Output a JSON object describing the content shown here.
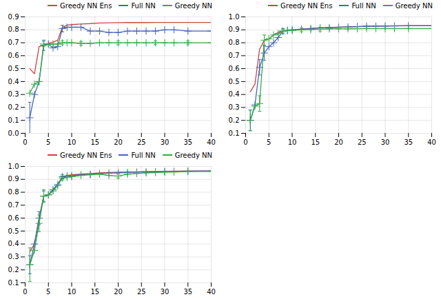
{
  "chart_data": [
    {
      "type": "line",
      "x": [
        1,
        2,
        3,
        4,
        5,
        6,
        7,
        8,
        9,
        10,
        12,
        14,
        16,
        18,
        20,
        22,
        24,
        26,
        28,
        30,
        32,
        35,
        40
      ],
      "series": [
        {
          "name": "Greedy NN Ens",
          "color": "#cc4444",
          "values": [
            0.5,
            0.46,
            0.67,
            0.68,
            0.695,
            0.705,
            0.72,
            0.82,
            0.835,
            0.84,
            0.845,
            0.848,
            0.853,
            0.854,
            0.855,
            0.856,
            0.856,
            0.856,
            0.857,
            0.857,
            0.857,
            0.857,
            0.857
          ],
          "errors": [
            0.0,
            0.0,
            0.0,
            0.0,
            0.0,
            0.0,
            0.0,
            0.0,
            0.0,
            0.0,
            0.0,
            0.0,
            0.0,
            0.0,
            0.0,
            0.0,
            0.0,
            0.0,
            0.0,
            0.0,
            0.0,
            0.0,
            0.0
          ]
        },
        {
          "name": "Full NN",
          "color": "#4466bb",
          "marker": "plus",
          "values": [
            0.12,
            0.3,
            0.4,
            0.68,
            0.69,
            0.66,
            0.67,
            0.81,
            0.82,
            0.82,
            0.82,
            0.79,
            0.79,
            0.78,
            0.78,
            0.79,
            0.79,
            0.79,
            0.79,
            0.8,
            0.8,
            0.79,
            0.79
          ],
          "errors": [
            0.12,
            0.0,
            0.0,
            0.04,
            0.0,
            0.0,
            0.0,
            0.025,
            0.0,
            0.0,
            0.0,
            0.0,
            0.0,
            0.0,
            0.0,
            0.0,
            0.0,
            0.0,
            0.0,
            0.0,
            0.0,
            0.0,
            0.0
          ]
        },
        {
          "name": "Greedy NN",
          "color": "#33aa44",
          "marker": "plus",
          "values": [
            0.31,
            0.38,
            0.4,
            0.69,
            0.69,
            0.69,
            0.69,
            0.7,
            0.7,
            0.7,
            0.695,
            0.695,
            0.7,
            0.7,
            0.7,
            0.7,
            0.7,
            0.7,
            0.7,
            0.7,
            0.7,
            0.7,
            0.7
          ],
          "errors": [
            0.0,
            0.0,
            0.0,
            0.02,
            0.0,
            0.0,
            0.0,
            0.015,
            0.0,
            0.0,
            0.015,
            0.0,
            0.0,
            0.0,
            0.015,
            0.0,
            0.0,
            0.0,
            0.015,
            0.0,
            0.0,
            0.015,
            0.0
          ]
        }
      ],
      "xlim": [
        0,
        40
      ],
      "xticks": [
        0,
        5,
        10,
        15,
        20,
        25,
        30,
        35,
        40
      ],
      "ylim": [
        0.0,
        0.9
      ],
      "yticks": [
        {
          "value": 0.0,
          "label": "0.0"
        },
        0.1,
        0.2,
        0.3,
        0.4,
        0.5,
        0.6,
        0.7,
        0.8,
        0.9
      ],
      "grid": true,
      "legend": "upper right"
    },
    {
      "type": "line",
      "x": [
        1,
        2,
        3,
        4,
        5,
        6,
        7,
        8,
        9,
        10,
        12,
        14,
        16,
        18,
        20,
        22,
        24,
        26,
        28,
        30,
        32,
        35,
        40
      ],
      "series": [
        {
          "name": "Greedy NN Ens",
          "color": "#cc4444",
          "values": [
            0.42,
            0.48,
            0.75,
            0.82,
            0.83,
            0.86,
            0.88,
            0.89,
            0.895,
            0.9,
            0.905,
            0.91,
            0.915,
            0.918,
            0.92,
            0.922,
            0.925,
            0.927,
            0.929,
            0.93,
            0.931,
            0.932,
            0.932
          ],
          "errors": [
            0.0,
            0.0,
            0.0,
            0.0,
            0.0,
            0.0,
            0.0,
            0.0,
            0.0,
            0.0,
            0.0,
            0.0,
            0.0,
            0.0,
            0.0,
            0.0,
            0.0,
            0.0,
            0.0,
            0.0,
            0.0,
            0.0,
            0.0
          ]
        },
        {
          "name": "Full NN",
          "color": "#4466bb",
          "marker": "plus",
          "values": [
            0.2,
            0.32,
            0.61,
            0.72,
            0.77,
            0.8,
            0.84,
            0.89,
            0.895,
            0.9,
            0.905,
            0.91,
            0.915,
            0.917,
            0.92,
            0.922,
            0.925,
            0.928,
            0.928,
            0.929,
            0.93,
            0.931,
            0.931
          ],
          "errors": [
            0.08,
            0.0,
            0.06,
            0.055,
            0.0,
            0.0,
            0.0,
            0.02,
            0.0,
            0.0,
            0.0,
            0.0,
            0.0,
            0.0,
            0.0,
            0.0,
            0.0,
            0.0,
            0.0,
            0.0,
            0.0,
            0.0,
            0.0
          ]
        },
        {
          "name": "Greedy NN",
          "color": "#33aa44",
          "marker": "plus",
          "values": [
            0.2,
            0.31,
            0.33,
            0.82,
            0.83,
            0.86,
            0.87,
            0.89,
            0.895,
            0.895,
            0.9,
            0.902,
            0.905,
            0.907,
            0.908,
            0.908,
            0.909,
            0.91,
            0.91,
            0.91,
            0.91,
            0.91,
            0.91
          ],
          "errors": [
            0.08,
            0.0,
            0.06,
            0.04,
            0.0,
            0.0,
            0.0,
            0.015,
            0.0,
            0.0,
            0.015,
            0.0,
            0.015,
            0.0,
            0.0,
            0.0,
            0.0,
            0.0,
            0.0,
            0.0,
            0.0,
            0.0,
            0.0
          ]
        }
      ],
      "xlim": [
        0,
        40
      ],
      "xticks": [
        0,
        5,
        10,
        15,
        20,
        25,
        30,
        35,
        40
      ],
      "ylim": [
        0.1,
        1.0
      ],
      "yticks": [
        0.1,
        0.2,
        0.3,
        0.4,
        0.5,
        0.6,
        0.7,
        0.8,
        0.9,
        {
          "value": 1.0,
          "label": "1.0"
        }
      ],
      "grid": true,
      "legend": "upper right"
    },
    {
      "type": "line",
      "x": [
        1,
        2,
        3,
        4,
        5,
        6,
        7,
        8,
        9,
        10,
        12,
        14,
        16,
        18,
        20,
        22,
        24,
        26,
        28,
        30,
        32,
        35,
        40
      ],
      "series": [
        {
          "name": "Greedy NN Ens",
          "color": "#cc4444",
          "values": [
            0.34,
            0.4,
            0.6,
            0.77,
            0.78,
            0.82,
            0.86,
            0.92,
            0.93,
            0.935,
            0.94,
            0.945,
            0.95,
            0.952,
            0.955,
            0.957,
            0.958,
            0.96,
            0.961,
            0.962,
            0.963,
            0.964,
            0.965
          ],
          "errors": [
            0.0,
            0.0,
            0.0,
            0.0,
            0.0,
            0.0,
            0.0,
            0.0,
            0.0,
            0.0,
            0.0,
            0.0,
            0.0,
            0.0,
            0.0,
            0.0,
            0.0,
            0.0,
            0.0,
            0.0,
            0.0,
            0.0,
            0.0
          ]
        },
        {
          "name": "Full NN",
          "color": "#4466bb",
          "marker": "plus",
          "values": [
            0.24,
            0.4,
            0.6,
            0.77,
            0.78,
            0.82,
            0.86,
            0.92,
            0.926,
            0.928,
            0.935,
            0.938,
            0.945,
            0.948,
            0.95,
            0.953,
            0.956,
            0.957,
            0.958,
            0.96,
            0.961,
            0.963,
            0.964
          ],
          "errors": [
            0.07,
            0.0,
            0.05,
            0.04,
            0.0,
            0.0,
            0.0,
            0.015,
            0.0,
            0.0,
            0.0,
            0.0,
            0.0,
            0.0,
            0.0,
            0.0,
            0.0,
            0.0,
            0.0,
            0.0,
            0.0,
            0.0,
            0.0
          ]
        },
        {
          "name": "Greedy NN",
          "color": "#33aa44",
          "marker": "plus",
          "values": [
            0.24,
            0.35,
            0.56,
            0.77,
            0.78,
            0.81,
            0.85,
            0.91,
            0.915,
            0.92,
            0.93,
            0.935,
            0.94,
            0.93,
            0.925,
            0.94,
            0.945,
            0.95,
            0.952,
            0.956,
            0.957,
            0.96,
            0.961
          ],
          "errors": [
            0.13,
            0.0,
            0.065,
            0.05,
            0.0,
            0.0,
            0.0,
            0.015,
            0.0,
            0.0,
            0.0,
            0.0,
            0.0,
            0.0,
            0.015,
            0.0,
            0.0,
            0.0,
            0.0,
            0.0,
            0.0,
            0.0,
            0.0
          ]
        }
      ],
      "xlim": [
        0,
        40
      ],
      "xticks": [
        0,
        5,
        10,
        15,
        20,
        25,
        30,
        35,
        40
      ],
      "ylim": [
        0.1,
        1.0
      ],
      "yticks": [
        0.1,
        0.2,
        0.3,
        0.4,
        0.5,
        0.6,
        0.7,
        0.8,
        0.9,
        {
          "value": 1.0,
          "label": "1.0"
        }
      ],
      "grid": true,
      "legend": "upper right"
    }
  ]
}
